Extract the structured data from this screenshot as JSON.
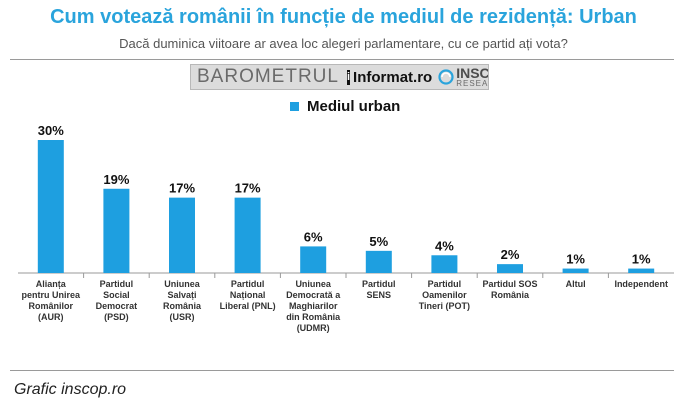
{
  "header": {
    "title": "Cum votează românii în funcție de mediul de rezidență: Urban",
    "subtitle": "Dacă duminica viitoare ar avea loc alegeri parlamentare, cu ce partid ați vota?"
  },
  "banner": {
    "barometer": "BAROMETRUL",
    "brand": "Informat.ro",
    "brand_icon": "i",
    "org": "INSCOP",
    "org_sub": "RESEARCH"
  },
  "colors": {
    "bar": "#1e9fe0",
    "title": "#2aa4dc"
  },
  "chart_data": {
    "type": "bar",
    "title": "Cum votează românii în funcție de mediul de rezidență: Urban",
    "subtitle": "Dacă duminica viitoare ar avea loc alegeri parlamentare, cu ce partid ați vota?",
    "legend": [
      "Mediul urban"
    ],
    "legend_position": "top-center",
    "grid": false,
    "ylim": [
      0,
      30
    ],
    "xlabel": "",
    "ylabel": "",
    "categories": [
      [
        "Alianța",
        "pentru Unirea",
        "Românilor",
        "(AUR)"
      ],
      [
        "Partidul",
        "Social",
        "Democrat",
        "(PSD)"
      ],
      [
        "Uniunea",
        "Salvați",
        "România",
        "(USR)"
      ],
      [
        "Partidul",
        "Național",
        "Liberal (PNL)"
      ],
      [
        "Uniunea",
        "Democrată a",
        "Maghiarilor",
        "din România",
        "(UDMR)"
      ],
      [
        "Partidul",
        "SENS"
      ],
      [
        "Partidul",
        "Oamenilor",
        "Tineri (POT)"
      ],
      [
        "Partidul SOS",
        "România"
      ],
      [
        "Altul"
      ],
      [
        "Independent"
      ]
    ],
    "series": [
      {
        "name": "Mediul urban",
        "values": [
          30,
          19,
          17,
          17,
          6,
          5,
          4,
          2,
          1,
          1
        ],
        "labels": [
          "30%",
          "19%",
          "17%",
          "17%",
          "6%",
          "5%",
          "4%",
          "2%",
          "1%",
          "1%"
        ]
      }
    ]
  },
  "footer": {
    "source": "Grafic inscop.ro"
  }
}
